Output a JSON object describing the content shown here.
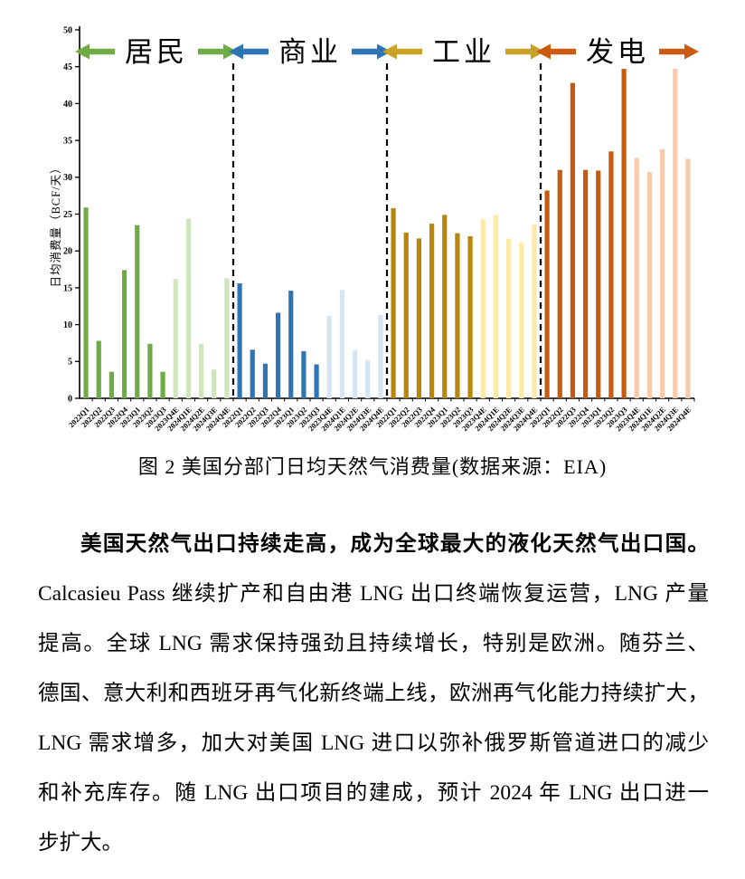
{
  "chart_data": {
    "type": "bar",
    "title": "",
    "xlabel": "",
    "ylabel": "日均消费量（BCF/天）",
    "ylim": [
      0,
      50
    ],
    "ytick_step": 5,
    "grid": false,
    "legend_position": "none",
    "categories": [
      "2022Q1",
      "2022Q2",
      "2022Q3",
      "2022Q4",
      "2023Q1",
      "2023Q2",
      "2023Q3",
      "2023Q4E",
      "2024Q1E",
      "2024Q2E",
      "2024Q3E",
      "2024Q4E"
    ],
    "estimate_start_index": 7,
    "sections": [
      {
        "label": "居民",
        "bar_color": "#6FAC46",
        "estimate_bar_color": "#CEE5BD",
        "arrow_color": "#6FAC46",
        "values": [
          25.9,
          7.8,
          3.6,
          17.4,
          23.5,
          7.4,
          3.6,
          16.2,
          24.4,
          7.4,
          3.9,
          16.3
        ]
      },
      {
        "label": "商业",
        "bar_color": "#2E75B6",
        "estimate_bar_color": "#D7E5F3",
        "arrow_color": "#2E75B6",
        "values": [
          15.6,
          6.6,
          4.7,
          11.6,
          14.6,
          6.4,
          4.6,
          11.2,
          14.7,
          6.5,
          5.2,
          11.3
        ]
      },
      {
        "label": "工业",
        "bar_color": "#B8860B",
        "estimate_bar_color": "#FFE9A8",
        "arrow_color": "#C9A227",
        "values": [
          25.8,
          22.5,
          21.7,
          23.7,
          24.9,
          22.4,
          22.0,
          24.3,
          24.9,
          21.7,
          21.2,
          23.6
        ]
      },
      {
        "label": "发电",
        "bar_color": "#C55A11",
        "estimate_bar_color": "#F8CBAD",
        "arrow_color": "#CC5B12",
        "values": [
          28.2,
          31.0,
          42.8,
          31.0,
          30.9,
          33.5,
          44.7,
          32.6,
          30.7,
          33.8,
          44.7,
          32.5
        ]
      }
    ],
    "divider_style": "dashed-black"
  },
  "caption": "图 2 美国分部门日均天然气消费量(数据来源：EIA)",
  "paragraph": {
    "lines": [
      "美国天然气出口持续走高，成为全球最大的液化天然气出口国。",
      "Calcasieu Pass 继续扩产和自由港 LNG 出口终端恢复运营，LNG 产量",
      "提高。全球 LNG 需求保持强劲且持续增长，特别是欧洲。随芬兰、",
      "德国、意大利和西班牙再气化新终端上线，欧洲再气化能力持续扩大，",
      "LNG 需求增多，加大对美国 LNG 进口以弥补俄罗斯管道进口的减少",
      "和补充库存。随 LNG 出口项目的建成，预计 2024 年 LNG 出口进一",
      "步扩大。"
    ]
  }
}
